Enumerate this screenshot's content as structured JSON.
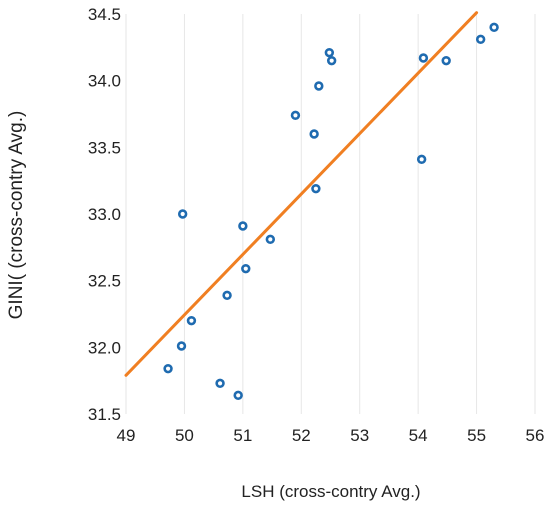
{
  "chart_data": {
    "type": "scatter",
    "xlabel": "LSH (cross-contry Avg.)",
    "ylabel": "GINI( (cross-contry Avg.)",
    "xlim": [
      49,
      56
    ],
    "ylim": [
      31.5,
      34.5
    ],
    "x_ticks": [
      "49",
      "50",
      "51",
      "52",
      "53",
      "54",
      "55",
      "56"
    ],
    "y_ticks": [
      "31.5",
      "32.0",
      "32.5",
      "33.0",
      "33.5",
      "34.0",
      "34.5"
    ],
    "grid": "vertical",
    "points": [
      {
        "x": 49.97,
        "y": 33.0
      },
      {
        "x": 49.72,
        "y": 31.84
      },
      {
        "x": 49.95,
        "y": 32.01
      },
      {
        "x": 50.12,
        "y": 32.2
      },
      {
        "x": 50.61,
        "y": 31.73
      },
      {
        "x": 50.73,
        "y": 32.39
      },
      {
        "x": 50.92,
        "y": 31.64
      },
      {
        "x": 51.0,
        "y": 32.91
      },
      {
        "x": 51.05,
        "y": 32.59
      },
      {
        "x": 51.47,
        "y": 32.81
      },
      {
        "x": 51.9,
        "y": 33.74
      },
      {
        "x": 52.22,
        "y": 33.6
      },
      {
        "x": 52.25,
        "y": 33.19
      },
      {
        "x": 52.3,
        "y": 33.96
      },
      {
        "x": 52.48,
        "y": 34.21
      },
      {
        "x": 52.52,
        "y": 34.15
      },
      {
        "x": 54.06,
        "y": 33.41
      },
      {
        "x": 54.09,
        "y": 34.17
      },
      {
        "x": 54.48,
        "y": 34.15
      },
      {
        "x": 55.07,
        "y": 34.31
      },
      {
        "x": 55.3,
        "y": 34.4
      }
    ],
    "trendline": {
      "x": [
        49.0,
        55.0
      ],
      "y": [
        31.79,
        34.51
      ]
    },
    "colors": {
      "points": "#1f6bb0",
      "trendline": "#f07f22",
      "grid": "#e6e6e6"
    }
  }
}
